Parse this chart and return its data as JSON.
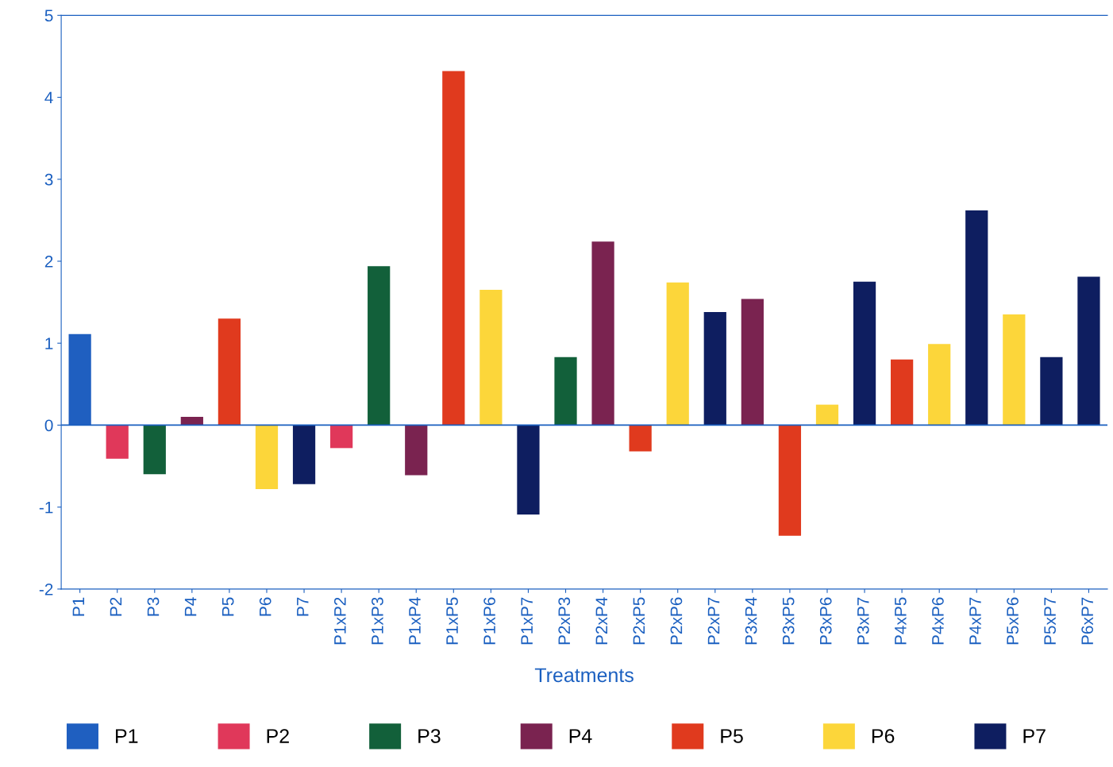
{
  "chart_data": {
    "type": "bar",
    "xlabel": "Treatments",
    "categories": [
      "P1",
      "P2",
      "P3",
      "P4",
      "P5",
      "P6",
      "P7",
      "P1xP2",
      "P1xP3",
      "P1xP4",
      "P1xP5",
      "P1xP6",
      "P1xP7",
      "P2xP3",
      "P2xP4",
      "P2xP5",
      "P2xP6",
      "P2xP7",
      "P3xP4",
      "P3xP5",
      "P3xP6",
      "P3xP7",
      "P4xP5",
      "P4xP6",
      "P4xP7",
      "P5xP6",
      "P5xP7",
      "P6xP7"
    ],
    "series": [
      {
        "name": "P1",
        "color": "#1f5fc0",
        "values": [
          1.11,
          null,
          null,
          null,
          null,
          null,
          null,
          null,
          null,
          null,
          null,
          null,
          null,
          null,
          null,
          null,
          null,
          null,
          null,
          null,
          null,
          null,
          null,
          null,
          null,
          null,
          null,
          null
        ]
      },
      {
        "name": "P2",
        "color": "#e0385a",
        "values": [
          null,
          -0.41,
          null,
          null,
          null,
          null,
          null,
          -0.28,
          null,
          null,
          null,
          null,
          null,
          null,
          null,
          null,
          null,
          null,
          null,
          null,
          null,
          null,
          null,
          null,
          null,
          null,
          null,
          null
        ]
      },
      {
        "name": "P3",
        "color": "#12603a",
        "values": [
          null,
          null,
          -0.6,
          null,
          null,
          null,
          null,
          null,
          1.94,
          null,
          null,
          null,
          null,
          0.83,
          null,
          null,
          null,
          null,
          null,
          null,
          null,
          null,
          null,
          null,
          null,
          null,
          null,
          null
        ]
      },
      {
        "name": "P4",
        "color": "#7a2350",
        "values": [
          null,
          null,
          null,
          0.1,
          null,
          null,
          null,
          null,
          null,
          -0.61,
          null,
          null,
          null,
          null,
          2.24,
          null,
          null,
          null,
          1.54,
          null,
          null,
          null,
          null,
          null,
          null,
          null,
          null,
          null
        ]
      },
      {
        "name": "P5",
        "color": "#e03a1e",
        "values": [
          null,
          null,
          null,
          null,
          1.3,
          null,
          null,
          null,
          null,
          null,
          4.32,
          null,
          null,
          null,
          null,
          -0.32,
          null,
          null,
          null,
          -1.35,
          null,
          null,
          0.8,
          null,
          null,
          null,
          null,
          null
        ]
      },
      {
        "name": "P6",
        "color": "#fcd63a",
        "values": [
          null,
          null,
          null,
          null,
          null,
          -0.78,
          null,
          null,
          null,
          null,
          null,
          1.65,
          null,
          null,
          null,
          null,
          1.74,
          null,
          null,
          null,
          0.25,
          null,
          null,
          0.99,
          null,
          1.35,
          null,
          null
        ]
      },
      {
        "name": "P7",
        "color": "#0e1e60",
        "values": [
          null,
          null,
          null,
          null,
          null,
          null,
          -0.72,
          null,
          null,
          null,
          null,
          null,
          -1.09,
          null,
          null,
          null,
          null,
          1.38,
          null,
          null,
          null,
          1.75,
          null,
          null,
          2.62,
          null,
          0.83,
          1.81
        ]
      }
    ],
    "ylim": [
      -2,
      5
    ],
    "yticks": [
      -2,
      -1,
      0,
      1,
      2,
      3,
      4,
      5
    ],
    "ref_lines": [
      {
        "axis": "y",
        "value": 0,
        "color": "#1a5fc0"
      }
    ],
    "legend": "bottom"
  }
}
